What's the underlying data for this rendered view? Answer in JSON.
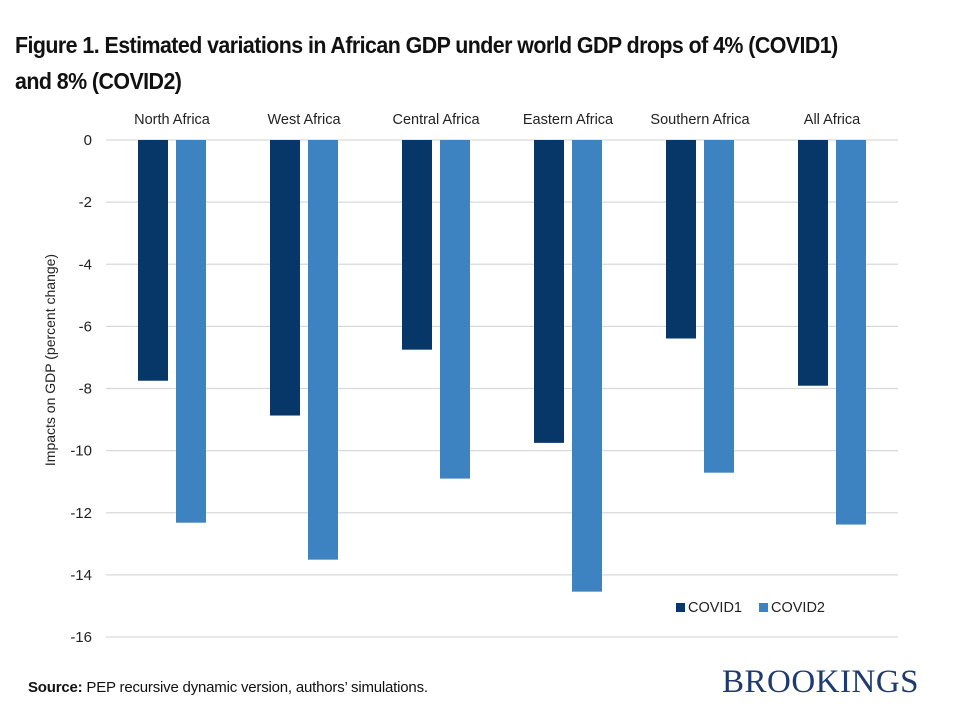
{
  "title": "Figure 1. Estimated variations in African GDP under world GDP drops of 4% (COVID1) and 8% (COVID2)",
  "source": {
    "label": "Source:",
    "text": " PEP recursive dynamic version, authors’ simulations."
  },
  "logo": "BROOKINGS",
  "colors": {
    "COVID1": "#063768",
    "COVID2": "#3d82c1",
    "grid": "#d9d9d9"
  },
  "chart_data": {
    "type": "bar",
    "title": "Figure 1. Estimated variations in African GDP under world GDP drops of 4% (COVID1) and 8% (COVID2)",
    "xlabel": "",
    "ylabel": "Impacts on GDP (percent change)",
    "categories": [
      "North Africa",
      "West Africa",
      "Central Africa",
      "Eastern Africa",
      "Southern Africa",
      "All Africa"
    ],
    "category_axis_position": "top",
    "series": [
      {
        "name": "COVID1",
        "color": "#063768",
        "values": [
          -7.75,
          -8.87,
          -6.75,
          -9.75,
          -6.39,
          -7.91
        ]
      },
      {
        "name": "COVID2",
        "color": "#3d82c1",
        "values": [
          -12.32,
          -13.51,
          -10.9,
          -14.54,
          -10.71,
          -12.38
        ]
      }
    ],
    "ylim": [
      -16,
      0
    ],
    "yticks": [
      0,
      -2,
      -4,
      -6,
      -8,
      -10,
      -12,
      -14,
      -16
    ],
    "grid": true,
    "legend_position": "bottom-right"
  }
}
